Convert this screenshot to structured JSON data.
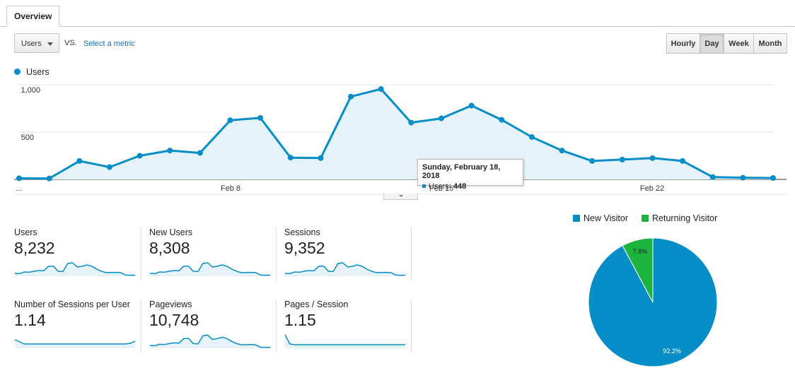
{
  "tabs": [
    {
      "label": "Overview"
    }
  ],
  "metric_selector": {
    "selected": "Users",
    "vs_label": "VS.",
    "secondary_link": "Select a metric"
  },
  "granularity": {
    "options": [
      "Hourly",
      "Day",
      "Week",
      "Month"
    ],
    "selected": "Day"
  },
  "colors": {
    "accent": "#058dc7",
    "new_visitor": "#058dc7",
    "returning_visitor": "#1cb33f",
    "area_fill": "#e6f2f9"
  },
  "main_chart": {
    "legend": "Users",
    "y_ticks": [
      "1,000",
      "500"
    ],
    "x_ticks": [
      "...",
      "Feb 8",
      "Feb 15",
      "Feb 22"
    ],
    "tooltip": {
      "date": "Sunday, February 18, 2018",
      "metric": "Users:",
      "value": "448"
    }
  },
  "chart_data": {
    "type": "area",
    "series": [
      {
        "name": "Users",
        "values": [
          12,
          10,
          195,
          130,
          250,
          305,
          280,
          625,
          650,
          230,
          225,
          875,
          955,
          600,
          645,
          780,
          630,
          448,
          305,
          195,
          210,
          225,
          195,
          25,
          18,
          15
        ]
      }
    ],
    "ylim": [
      0,
      1000
    ],
    "x_labels": [
      "...",
      "Feb 8",
      "Feb 15",
      "Feb 22"
    ]
  },
  "scorecards": [
    {
      "label": "Users",
      "value": "8,232",
      "spark": [
        0.2,
        0.18,
        0.3,
        0.28,
        0.35,
        0.4,
        0.38,
        0.7,
        0.72,
        0.35,
        0.33,
        0.9,
        0.95,
        0.65,
        0.7,
        0.8,
        0.7,
        0.5,
        0.35,
        0.25,
        0.26,
        0.27,
        0.25,
        0.08,
        0.07,
        0.07
      ]
    },
    {
      "label": "New Users",
      "value": "8,308",
      "spark": [
        0.2,
        0.18,
        0.3,
        0.28,
        0.35,
        0.4,
        0.38,
        0.7,
        0.72,
        0.35,
        0.33,
        0.9,
        0.95,
        0.65,
        0.7,
        0.8,
        0.7,
        0.5,
        0.35,
        0.25,
        0.26,
        0.27,
        0.25,
        0.08,
        0.07,
        0.07
      ]
    },
    {
      "label": "Sessions",
      "value": "9,352",
      "spark": [
        0.2,
        0.18,
        0.3,
        0.28,
        0.35,
        0.4,
        0.38,
        0.7,
        0.72,
        0.35,
        0.33,
        0.9,
        0.95,
        0.65,
        0.7,
        0.8,
        0.7,
        0.5,
        0.35,
        0.25,
        0.26,
        0.27,
        0.25,
        0.08,
        0.07,
        0.07
      ]
    },
    {
      "label": "Number of Sessions per User",
      "value": "1.14",
      "spark": [
        0.6,
        0.45,
        0.3,
        0.3,
        0.3,
        0.3,
        0.3,
        0.3,
        0.3,
        0.3,
        0.3,
        0.3,
        0.3,
        0.3,
        0.3,
        0.3,
        0.3,
        0.3,
        0.3,
        0.3,
        0.3,
        0.3,
        0.3,
        0.3,
        0.35,
        0.5
      ]
    },
    {
      "label": "Pageviews",
      "value": "10,748",
      "spark": [
        0.2,
        0.18,
        0.28,
        0.26,
        0.33,
        0.38,
        0.36,
        0.68,
        0.7,
        0.33,
        0.31,
        0.88,
        0.93,
        0.62,
        0.68,
        0.78,
        0.68,
        0.48,
        0.33,
        0.24,
        0.25,
        0.26,
        0.24,
        0.07,
        0.06,
        0.06
      ]
    },
    {
      "label": "Pages / Session",
      "value": "1.15",
      "spark": [
        0.95,
        0.3,
        0.25,
        0.25,
        0.25,
        0.25,
        0.25,
        0.25,
        0.25,
        0.25,
        0.25,
        0.25,
        0.25,
        0.25,
        0.25,
        0.25,
        0.25,
        0.25,
        0.25,
        0.25,
        0.25,
        0.25,
        0.25,
        0.25,
        0.25,
        0.25
      ]
    }
  ],
  "pie": {
    "legend": [
      {
        "name": "New Visitor"
      },
      {
        "name": "Returning Visitor"
      }
    ],
    "slices": [
      {
        "name": "New Visitor",
        "value": 92.2,
        "label": "92.2%"
      },
      {
        "name": "Returning Visitor",
        "value": 7.8,
        "label": "7.8%"
      }
    ]
  }
}
